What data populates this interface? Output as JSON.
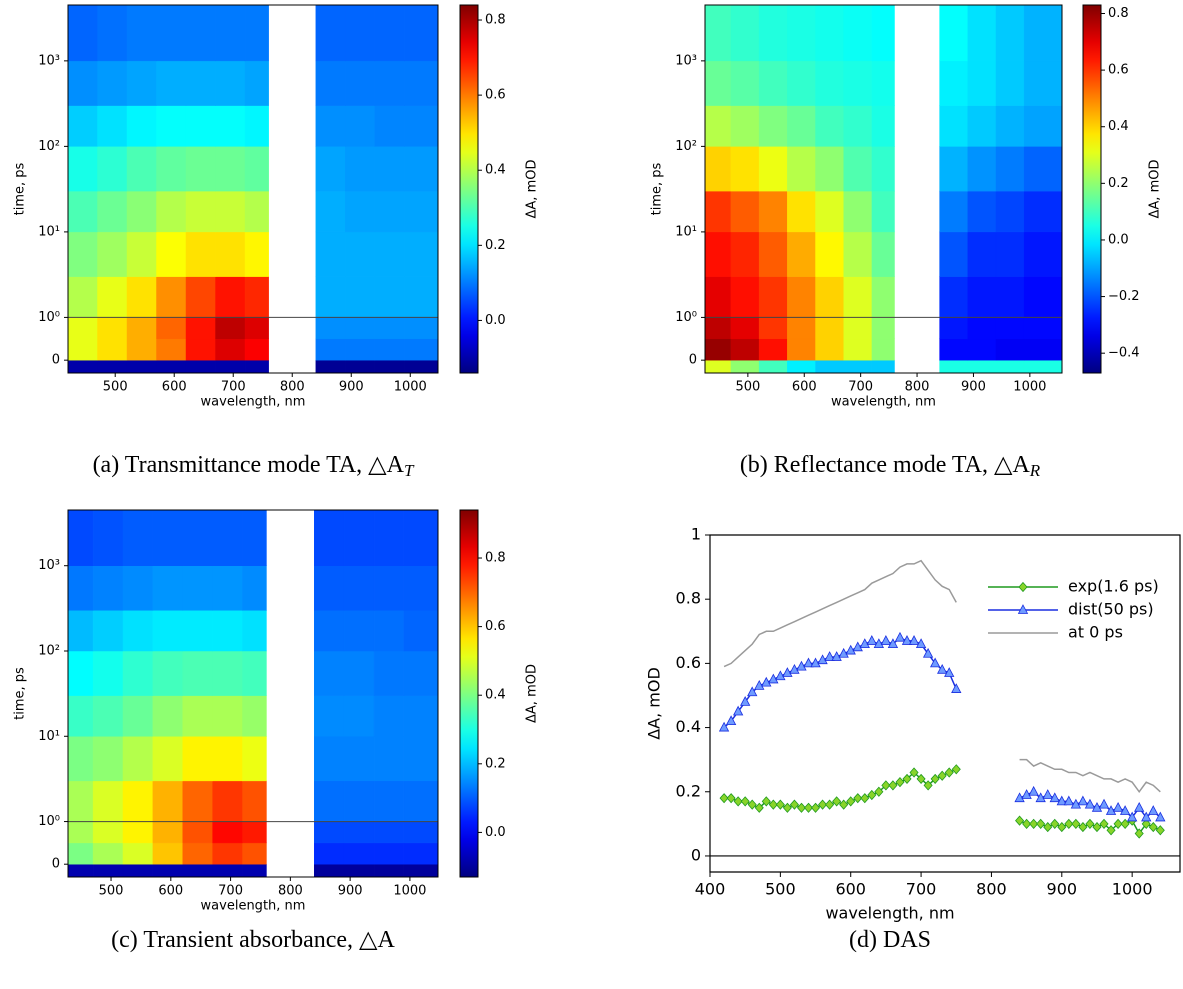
{
  "chart_data": [
    {
      "type": "heatmap",
      "caption": {
        "text": "(a) Transmittance mode TA, △A",
        "sub": "T"
      },
      "xlabel": "wavelength, nm",
      "ylabel": "time, ps",
      "colorbar_label": "ΔA, mOD",
      "colormap": "jet",
      "yscale": "symlog",
      "hline": 1,
      "xlim": [
        420,
        1047
      ],
      "ylim": [
        -0.3,
        4500
      ],
      "clim": [
        -0.14,
        0.84
      ],
      "xticks": [
        500,
        600,
        700,
        800,
        900,
        1000
      ],
      "yticks": [
        0,
        {
          "value": 1,
          "label": "10⁰"
        },
        {
          "value": 10,
          "label": "10¹"
        },
        {
          "value": 100,
          "label": "10²"
        },
        {
          "value": 1000,
          "label": "10³"
        }
      ],
      "cticks": [
        {
          "value": 0,
          "label": "0.0"
        },
        0.2,
        0.4,
        0.6,
        0.8
      ],
      "x_edges": [
        420,
        470,
        520,
        570,
        620,
        670,
        720,
        760,
        840,
        890,
        940,
        990,
        1047
      ],
      "y_edges": [
        -0.3,
        0,
        0.5,
        1,
        3,
        10,
        30,
        100,
        300,
        1000,
        4500
      ],
      "z": [
        [
          -0.1,
          -0.1,
          -0.1,
          -0.1,
          -0.1,
          -0.1,
          -0.1,
          null,
          -0.12,
          -0.12,
          -0.12,
          -0.12
        ],
        [
          0.45,
          0.5,
          0.55,
          0.6,
          0.7,
          0.75,
          0.72,
          null,
          0.1,
          0.1,
          0.1,
          0.1
        ],
        [
          0.45,
          0.5,
          0.55,
          0.62,
          0.7,
          0.78,
          0.75,
          null,
          0.12,
          0.12,
          0.12,
          0.12
        ],
        [
          0.4,
          0.45,
          0.5,
          0.58,
          0.65,
          0.7,
          0.68,
          null,
          0.15,
          0.15,
          0.15,
          0.15
        ],
        [
          0.35,
          0.38,
          0.42,
          0.47,
          0.5,
          0.5,
          0.48,
          null,
          0.15,
          0.15,
          0.15,
          0.15
        ],
        [
          0.3,
          0.33,
          0.36,
          0.4,
          0.42,
          0.42,
          0.4,
          null,
          0.15,
          0.14,
          0.14,
          0.14
        ],
        [
          0.25,
          0.27,
          0.3,
          0.32,
          0.33,
          0.33,
          0.32,
          null,
          0.14,
          0.13,
          0.13,
          0.13
        ],
        [
          0.18,
          0.2,
          0.22,
          0.23,
          0.23,
          0.23,
          0.22,
          null,
          0.12,
          0.12,
          0.11,
          0.11
        ],
        [
          0.12,
          0.13,
          0.14,
          0.15,
          0.15,
          0.15,
          0.14,
          null,
          0.1,
          0.1,
          0.1,
          0.1
        ],
        [
          0.08,
          0.09,
          0.1,
          0.1,
          0.1,
          0.1,
          0.1,
          null,
          0.08,
          0.08,
          0.08,
          0.08
        ]
      ]
    },
    {
      "type": "heatmap",
      "caption": {
        "text": "(b) Reflectance mode TA, △A",
        "sub": "R"
      },
      "xlabel": "wavelength, nm",
      "ylabel": "time, ps",
      "colorbar_label": "ΔA, mOD",
      "colormap": "jet",
      "yscale": "symlog",
      "hline": 1,
      "xlim": [
        424,
        1057
      ],
      "ylim": [
        -0.3,
        4500
      ],
      "clim": [
        -0.47,
        0.83
      ],
      "xticks": [
        500,
        600,
        700,
        800,
        900,
        1000
      ],
      "yticks": [
        0,
        {
          "value": 1,
          "label": "10⁰"
        },
        {
          "value": 10,
          "label": "10¹"
        },
        {
          "value": 100,
          "label": "10²"
        },
        {
          "value": 1000,
          "label": "10³"
        }
      ],
      "cticks": [
        {
          "value": -0.4,
          "label": "−0.4"
        },
        {
          "value": -0.2,
          "label": "−0.2"
        },
        {
          "value": 0,
          "label": "0.0"
        },
        0.2,
        0.4,
        0.6,
        0.8
      ],
      "x_edges": [
        424,
        470,
        520,
        570,
        620,
        670,
        720,
        760,
        840,
        890,
        940,
        990,
        1057
      ],
      "y_edges": [
        -0.3,
        0,
        0.5,
        1,
        3,
        10,
        30,
        100,
        300,
        1000,
        4500
      ],
      "z": [
        [
          0.3,
          0.2,
          0.1,
          0.0,
          -0.05,
          -0.05,
          -0.05,
          null,
          0.05,
          0.05,
          0.05,
          0.05
        ],
        [
          0.8,
          0.75,
          0.65,
          0.5,
          0.4,
          0.3,
          0.2,
          null,
          -0.3,
          -0.3,
          -0.32,
          -0.32
        ],
        [
          0.75,
          0.7,
          0.6,
          0.5,
          0.4,
          0.3,
          0.2,
          null,
          -0.28,
          -0.3,
          -0.3,
          -0.3
        ],
        [
          0.7,
          0.65,
          0.6,
          0.5,
          0.4,
          0.3,
          0.2,
          null,
          -0.25,
          -0.28,
          -0.28,
          -0.3
        ],
        [
          0.65,
          0.62,
          0.55,
          0.45,
          0.35,
          0.25,
          0.15,
          null,
          -0.2,
          -0.25,
          -0.25,
          -0.28
        ],
        [
          0.6,
          0.55,
          0.5,
          0.38,
          0.3,
          0.2,
          0.1,
          null,
          -0.15,
          -0.2,
          -0.22,
          -0.25
        ],
        [
          0.4,
          0.38,
          0.32,
          0.25,
          0.2,
          0.12,
          0.08,
          null,
          -0.08,
          -0.12,
          -0.15,
          -0.18
        ],
        [
          0.25,
          0.22,
          0.18,
          0.15,
          0.1,
          0.08,
          0.05,
          null,
          -0.02,
          -0.05,
          -0.08,
          -0.1
        ],
        [
          0.15,
          0.13,
          0.1,
          0.08,
          0.06,
          0.05,
          0.04,
          null,
          0.0,
          -0.02,
          -0.05,
          -0.08
        ],
        [
          0.1,
          0.08,
          0.06,
          0.05,
          0.04,
          0.03,
          0.02,
          null,
          0.02,
          -0.02,
          -0.05,
          -0.08
        ]
      ]
    },
    {
      "type": "heatmap",
      "caption": {
        "text": "(c) Transient absorbance, △A"
      },
      "xlabel": "wavelength, nm",
      "ylabel": "time, ps",
      "colorbar_label": "ΔA, mOD",
      "colormap": "jet",
      "yscale": "symlog",
      "hline": 1,
      "xlim": [
        428,
        1047
      ],
      "ylim": [
        -0.3,
        4500
      ],
      "clim": [
        -0.13,
        0.94
      ],
      "xticks": [
        500,
        600,
        700,
        800,
        900,
        1000
      ],
      "yticks": [
        0,
        {
          "value": 1,
          "label": "10⁰"
        },
        {
          "value": 10,
          "label": "10¹"
        },
        {
          "value": 100,
          "label": "10²"
        },
        {
          "value": 1000,
          "label": "10³"
        }
      ],
      "cticks": [
        {
          "value": 0,
          "label": "0.0"
        },
        0.2,
        0.4,
        0.6,
        0.8
      ],
      "x_edges": [
        428,
        470,
        520,
        570,
        620,
        670,
        720,
        760,
        840,
        890,
        940,
        990,
        1047
      ],
      "y_edges": [
        -0.3,
        0,
        0.5,
        1,
        3,
        10,
        30,
        100,
        300,
        1000,
        4500
      ],
      "z": [
        [
          -0.08,
          -0.08,
          -0.08,
          -0.08,
          -0.08,
          -0.08,
          -0.08,
          null,
          -0.1,
          -0.1,
          -0.1,
          -0.1
        ],
        [
          0.4,
          0.45,
          0.5,
          0.6,
          0.7,
          0.75,
          0.72,
          null,
          0.05,
          0.05,
          0.05,
          0.05
        ],
        [
          0.45,
          0.5,
          0.55,
          0.62,
          0.72,
          0.8,
          0.78,
          null,
          0.08,
          0.08,
          0.08,
          0.08
        ],
        [
          0.45,
          0.5,
          0.55,
          0.62,
          0.7,
          0.75,
          0.72,
          null,
          0.12,
          0.12,
          0.12,
          0.12
        ],
        [
          0.4,
          0.42,
          0.46,
          0.5,
          0.55,
          0.55,
          0.52,
          null,
          0.14,
          0.14,
          0.14,
          0.14
        ],
        [
          0.33,
          0.35,
          0.38,
          0.42,
          0.45,
          0.45,
          0.43,
          null,
          0.15,
          0.15,
          0.14,
          0.14
        ],
        [
          0.27,
          0.29,
          0.32,
          0.34,
          0.35,
          0.35,
          0.34,
          null,
          0.14,
          0.14,
          0.13,
          0.13
        ],
        [
          0.2,
          0.22,
          0.24,
          0.25,
          0.25,
          0.25,
          0.24,
          null,
          0.12,
          0.12,
          0.12,
          0.11
        ],
        [
          0.13,
          0.14,
          0.15,
          0.16,
          0.16,
          0.16,
          0.15,
          null,
          0.1,
          0.1,
          0.1,
          0.1
        ],
        [
          0.08,
          0.09,
          0.1,
          0.1,
          0.1,
          0.1,
          0.1,
          null,
          0.08,
          0.08,
          0.08,
          0.08
        ]
      ]
    },
    {
      "type": "line",
      "caption": {
        "text": "(d) DAS"
      },
      "xlabel": "wavelength, nm",
      "ylabel": "ΔA, mOD",
      "hline": 0,
      "legend": "upper right",
      "xlim": [
        400,
        1068
      ],
      "ylim": [
        -0.05,
        1
      ],
      "xticks": [
        400,
        500,
        600,
        700,
        800,
        900,
        1000
      ],
      "yticks": [
        0,
        0.2,
        0.4,
        0.6,
        0.8,
        1
      ],
      "x": [
        420,
        430,
        440,
        450,
        460,
        470,
        480,
        490,
        500,
        510,
        520,
        530,
        540,
        550,
        560,
        570,
        580,
        590,
        600,
        610,
        620,
        630,
        640,
        650,
        660,
        670,
        680,
        690,
        700,
        710,
        720,
        730,
        740,
        750,
        800,
        840,
        850,
        860,
        870,
        880,
        890,
        900,
        910,
        920,
        930,
        940,
        950,
        960,
        970,
        980,
        990,
        1000,
        1010,
        1020,
        1030,
        1040
      ],
      "series": [
        {
          "name": "exp(1.6 ps)",
          "color": "#1f9a1f",
          "marker": "diamond",
          "marker_color": "#88d42a",
          "values": [
            0.18,
            0.18,
            0.17,
            0.17,
            0.16,
            0.15,
            0.17,
            0.16,
            0.16,
            0.15,
            0.16,
            0.15,
            0.15,
            0.15,
            0.16,
            0.16,
            0.17,
            0.16,
            0.17,
            0.18,
            0.18,
            0.19,
            0.2,
            0.22,
            0.22,
            0.23,
            0.24,
            0.26,
            0.24,
            0.22,
            0.24,
            0.25,
            0.26,
            0.27,
            null,
            0.11,
            0.1,
            0.1,
            0.1,
            0.09,
            0.1,
            0.09,
            0.1,
            0.1,
            0.09,
            0.1,
            0.09,
            0.1,
            0.08,
            0.1,
            0.1,
            0.11,
            0.07,
            0.1,
            0.09,
            0.08
          ]
        },
        {
          "name": "dist(50 ps)",
          "color": "#1a2ee0",
          "marker": "triangle",
          "marker_color": "#6f9bff",
          "values": [
            0.4,
            0.42,
            0.45,
            0.48,
            0.51,
            0.53,
            0.54,
            0.55,
            0.56,
            0.57,
            0.58,
            0.59,
            0.6,
            0.6,
            0.61,
            0.62,
            0.62,
            0.63,
            0.64,
            0.65,
            0.66,
            0.67,
            0.66,
            0.67,
            0.66,
            0.68,
            0.67,
            0.67,
            0.66,
            0.63,
            0.6,
            0.58,
            0.57,
            0.52,
            null,
            0.18,
            0.19,
            0.2,
            0.18,
            0.19,
            0.18,
            0.17,
            0.17,
            0.16,
            0.17,
            0.16,
            0.15,
            0.16,
            0.14,
            0.15,
            0.14,
            0.12,
            0.15,
            0.12,
            0.14,
            0.12
          ]
        },
        {
          "name": "at 0 ps",
          "color": "#9a9a9a",
          "values": [
            0.59,
            0.6,
            0.62,
            0.64,
            0.66,
            0.69,
            0.7,
            0.7,
            0.71,
            0.72,
            0.73,
            0.74,
            0.75,
            0.76,
            0.77,
            0.78,
            0.79,
            0.8,
            0.81,
            0.82,
            0.83,
            0.85,
            0.86,
            0.87,
            0.88,
            0.9,
            0.91,
            0.91,
            0.92,
            0.89,
            0.86,
            0.84,
            0.83,
            0.79,
            null,
            0.3,
            0.3,
            0.28,
            0.29,
            0.28,
            0.27,
            0.27,
            0.26,
            0.26,
            0.25,
            0.26,
            0.25,
            0.24,
            0.24,
            0.23,
            0.24,
            0.23,
            0.2,
            0.23,
            0.22,
            0.2
          ]
        }
      ]
    }
  ]
}
